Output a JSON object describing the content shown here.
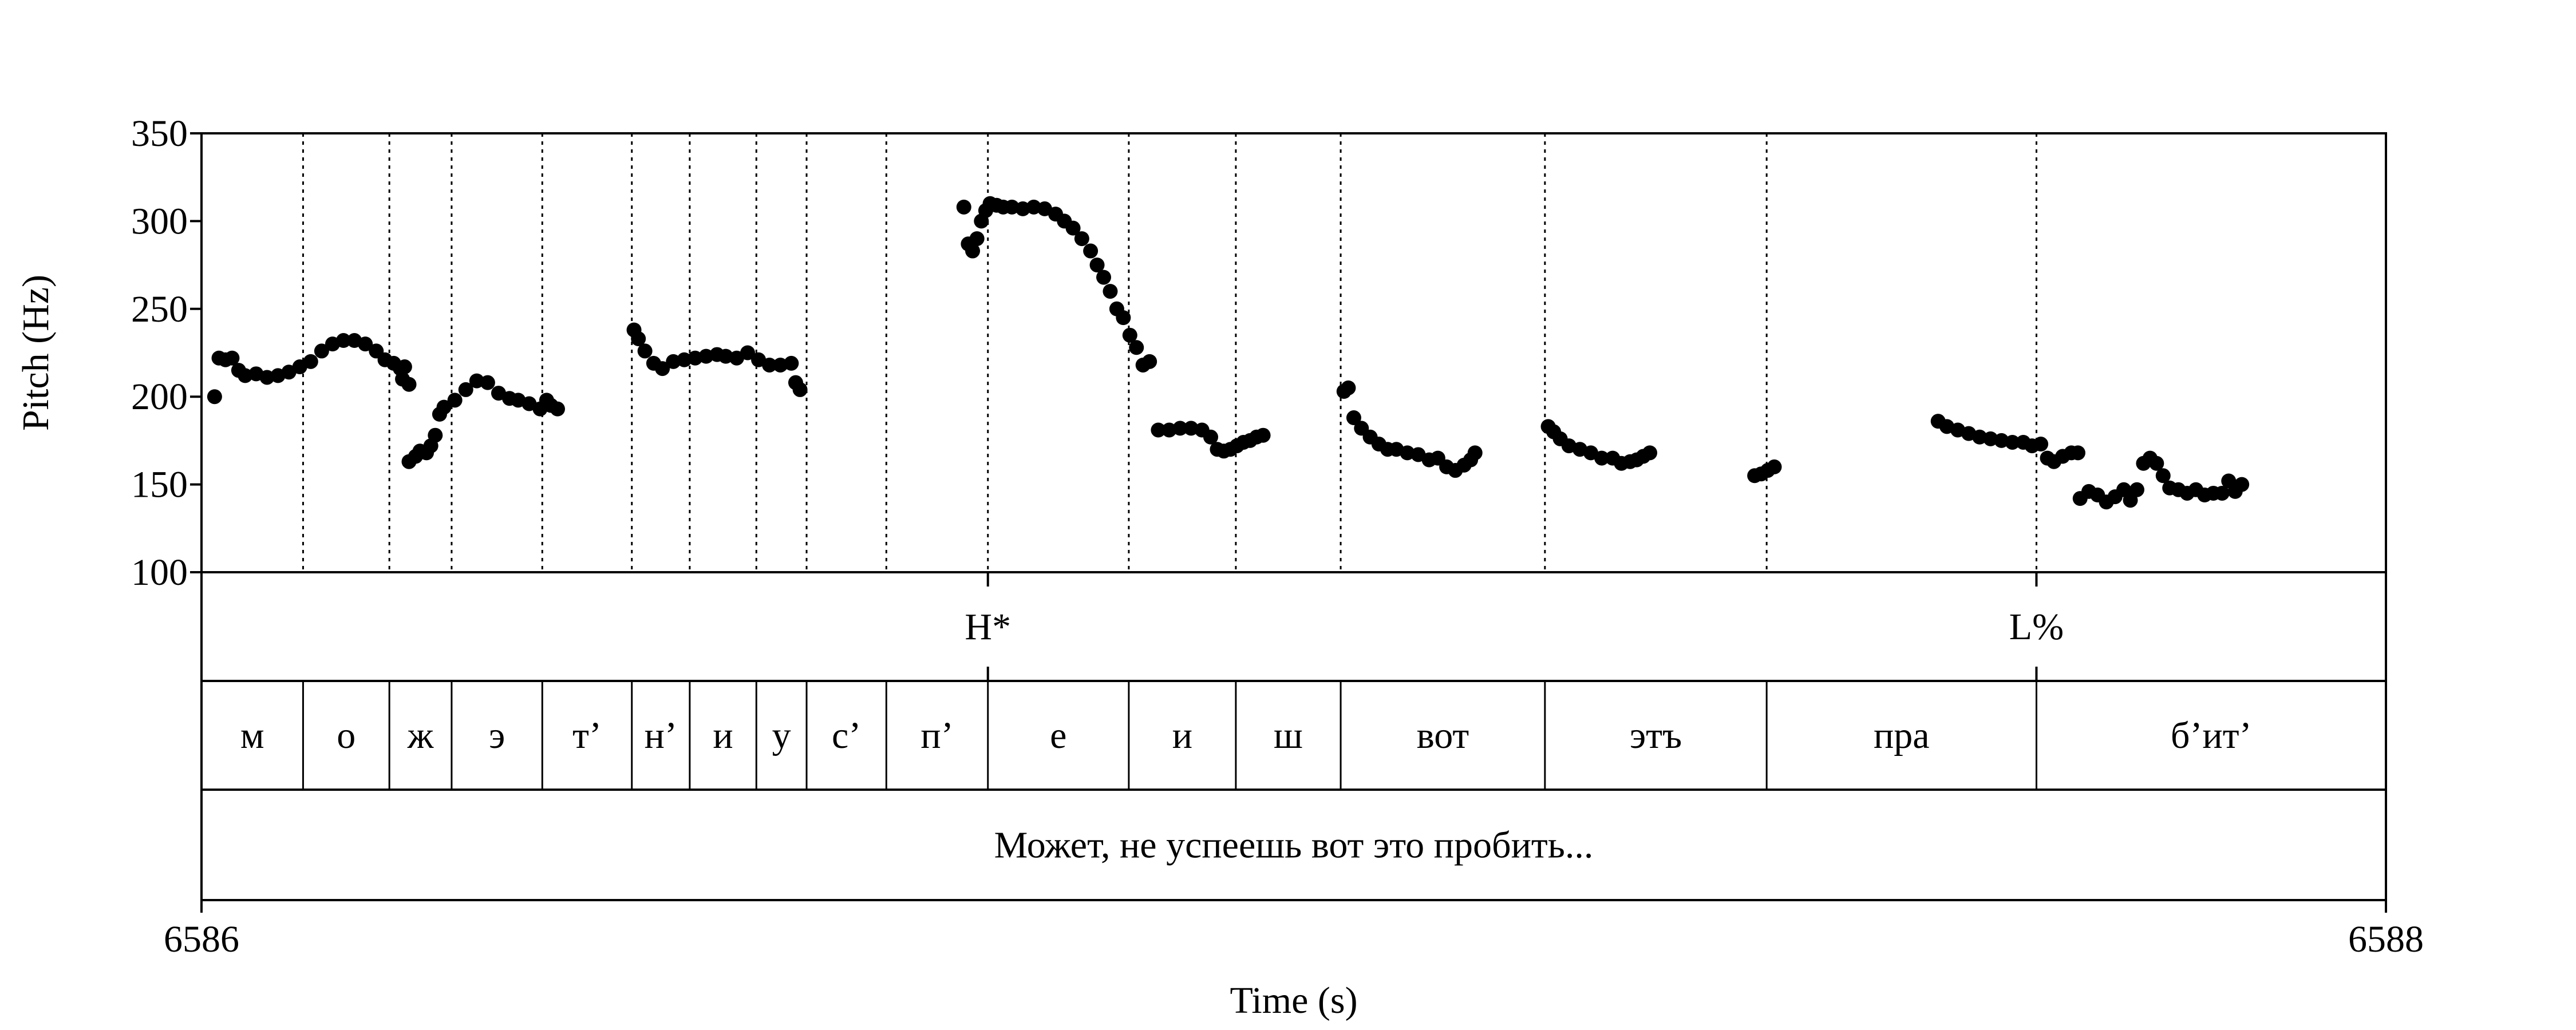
{
  "chart_data": {
    "type": "scatter",
    "xlabel": "Time (s)",
    "ylabel": "Pitch (Hz)",
    "xlim": [
      6586,
      6588
    ],
    "ylim": [
      100,
      350
    ],
    "x_ticks": [
      6586,
      6588
    ],
    "y_ticks": [
      100,
      150,
      200,
      250,
      300,
      350
    ],
    "tones": [
      {
        "label": "H*",
        "time": 6586.72
      },
      {
        "label": "L%",
        "time": 6587.68
      }
    ],
    "segments": [
      {
        "label": "м",
        "start": 6586.0,
        "end": 6586.093
      },
      {
        "label": "о",
        "start": 6586.093,
        "end": 6586.172
      },
      {
        "label": "ж",
        "start": 6586.172,
        "end": 6586.229
      },
      {
        "label": "э",
        "start": 6586.229,
        "end": 6586.312
      },
      {
        "label": "т’",
        "start": 6586.312,
        "end": 6586.394
      },
      {
        "label": "н’",
        "start": 6586.394,
        "end": 6586.447
      },
      {
        "label": "и",
        "start": 6586.447,
        "end": 6586.508
      },
      {
        "label": "у",
        "start": 6586.508,
        "end": 6586.554
      },
      {
        "label": "с’",
        "start": 6586.554,
        "end": 6586.627
      },
      {
        "label": "п’",
        "start": 6586.627,
        "end": 6586.72
      },
      {
        "label": "е",
        "start": 6586.72,
        "end": 6586.849
      },
      {
        "label": "и",
        "start": 6586.849,
        "end": 6586.947
      },
      {
        "label": "ш",
        "start": 6586.947,
        "end": 6587.043
      },
      {
        "label": "вот",
        "start": 6587.043,
        "end": 6587.23
      },
      {
        "label": "этъ",
        "start": 6587.23,
        "end": 6587.433
      },
      {
        "label": "пра",
        "start": 6587.433,
        "end": 6587.68
      },
      {
        "label": "б’ит’",
        "start": 6587.68,
        "end": 6588.0
      }
    ],
    "utterance": "Может, не успеешь вот это пробить...",
    "pitch_runs": [
      {
        "x": [
          6586.012,
          6586.016,
          6586.022,
          6586.028,
          6586.034,
          6586.04,
          6586.05,
          6586.06,
          6586.07,
          6586.08,
          6586.09,
          6586.1,
          6586.11,
          6586.12,
          6586.13,
          6586.14,
          6586.15,
          6586.16,
          6586.168,
          6586.176,
          6586.182
        ],
        "y": [
          200,
          222,
          221,
          222,
          215,
          212,
          213,
          211,
          212,
          214,
          217,
          220,
          226,
          230,
          232,
          232,
          230,
          226,
          221,
          219,
          216
        ]
      },
      {
        "x": [
          6586.184,
          6586.19
        ],
        "y": [
          210,
          207
        ]
      },
      {
        "x": [
          6586.186
        ],
        "y": [
          217
        ]
      },
      {
        "x": [
          6586.19,
          6586.196,
          6586.2,
          6586.206,
          6586.21,
          6586.214,
          6586.218,
          6586.222,
          6586.232,
          6586.242,
          6586.252,
          6586.262,
          6586.272,
          6586.282,
          6586.29,
          6586.3,
          6586.31,
          6586.316,
          6586.32,
          6586.326
        ],
        "y": [
          163,
          166,
          169,
          168,
          172,
          178,
          190,
          194,
          198,
          204,
          209,
          208,
          202,
          199,
          198,
          196,
          193,
          198,
          195,
          193
        ]
      },
      {
        "x": [
          6586.396,
          6586.4,
          6586.406,
          6586.414,
          6586.422,
          6586.432,
          6586.442,
          6586.452,
          6586.462,
          6586.472,
          6586.48,
          6586.49,
          6586.5,
          6586.51,
          6586.52,
          6586.53,
          6586.54
        ],
        "y": [
          238,
          233,
          226,
          219,
          216,
          220,
          221,
          222,
          223,
          224,
          223,
          222,
          225,
          221,
          218,
          218,
          219
        ]
      },
      {
        "x": [
          6586.544,
          6586.548
        ],
        "y": [
          208,
          204
        ]
      },
      {
        "x": [
          6586.698,
          6586.702,
          6586.706,
          6586.71,
          6586.714,
          6586.718,
          6586.722,
          6586.728,
          6586.734,
          6586.742,
          6586.752,
          6586.762,
          6586.772,
          6586.782,
          6586.79,
          6586.798,
          6586.806,
          6586.814,
          6586.82,
          6586.826,
          6586.832,
          6586.838,
          6586.844,
          6586.85,
          6586.856,
          6586.862
        ],
        "y": [
          308,
          287,
          283,
          290,
          300,
          306,
          310,
          309,
          308,
          308,
          307,
          308,
          307,
          304,
          300,
          296,
          290,
          283,
          275,
          268,
          260,
          250,
          245,
          235,
          228,
          218
        ]
      },
      {
        "x": [
          6586.868,
          6586.876,
          6586.886,
          6586.896,
          6586.906,
          6586.916,
          6586.924,
          6586.93,
          6586.936,
          6586.942,
          6586.948,
          6586.954,
          6586.96,
          6586.966,
          6586.972
        ],
        "y": [
          220,
          181,
          181,
          182,
          182,
          181,
          177,
          170,
          169,
          170,
          172,
          174,
          175,
          177,
          178
        ]
      },
      {
        "x": [
          6587.046,
          6587.05,
          6587.055,
          6587.062,
          6587.07,
          6587.078,
          6587.086,
          6587.094,
          6587.104,
          6587.114,
          6587.124,
          6587.132,
          6587.14,
          6587.148,
          6587.156,
          6587.162,
          6587.166
        ],
        "y": [
          203,
          205,
          188,
          182,
          177,
          173,
          170,
          170,
          168,
          167,
          164,
          165,
          160,
          158,
          161,
          164,
          168
        ]
      },
      {
        "x": [
          6587.233,
          6587.238,
          6587.244,
          6587.252,
          6587.262,
          6587.272,
          6587.282,
          6587.292,
          6587.3,
          6587.308,
          6587.314,
          6587.32,
          6587.326
        ],
        "y": [
          183,
          180,
          176,
          172,
          170,
          168,
          165,
          165,
          162,
          163,
          164,
          166,
          168
        ]
      },
      {
        "x": [
          6587.422,
          6587.428,
          6587.434,
          6587.44
        ],
        "y": [
          155,
          156,
          158,
          160
        ]
      },
      {
        "x": [
          6587.59,
          6587.598,
          6587.608,
          6587.618,
          6587.628,
          6587.638,
          6587.648,
          6587.658,
          6587.668,
          6587.676,
          6587.684,
          6587.69,
          6587.696,
          6587.704,
          6587.712,
          6587.718
        ],
        "y": [
          186,
          183,
          181,
          179,
          177,
          176,
          175,
          174,
          174,
          172,
          173,
          165,
          163,
          166,
          168,
          168
        ]
      },
      {
        "x": [
          6587.72,
          6587.728,
          6587.736,
          6587.744,
          6587.752,
          6587.76,
          6587.766,
          6587.772,
          6587.778,
          6587.784,
          6587.79,
          6587.796,
          6587.802,
          6587.81,
          6587.818,
          6587.826,
          6587.834,
          6587.842,
          6587.85,
          6587.856,
          6587.862,
          6587.868
        ],
        "y": [
          142,
          146,
          144,
          140,
          143,
          147,
          141,
          147,
          162,
          165,
          162,
          155,
          148,
          147,
          145,
          147,
          144,
          145,
          145,
          152,
          146,
          150
        ]
      }
    ]
  }
}
